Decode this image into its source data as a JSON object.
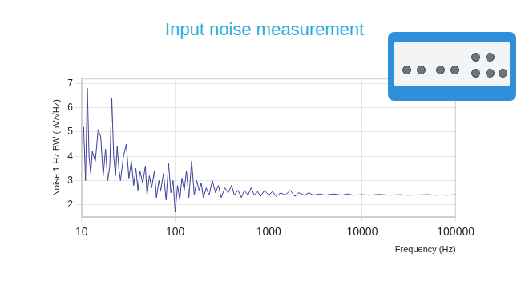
{
  "chart_data": {
    "type": "line",
    "title": "Input noise measurement",
    "x_label": "Frequency (Hz)",
    "y_label": "Noise 1 Hz BW (nV/√Hz)",
    "log": "x",
    "grid": true,
    "color": "#3f3f9c",
    "xlim": [
      10,
      100000
    ],
    "xticks": [
      10,
      100,
      1000,
      10000,
      100000
    ],
    "ylim": [
      1.5,
      7.2
    ],
    "yticks": [
      2,
      3,
      4,
      5,
      6,
      7
    ],
    "x": [
      10,
      10.5,
      11,
      11.5,
      12,
      12.5,
      13,
      14,
      15,
      16,
      17,
      18,
      19,
      20,
      21,
      22,
      23,
      24,
      25,
      26,
      28,
      30,
      32,
      34,
      36,
      38,
      40,
      42,
      45,
      48,
      50,
      53,
      56,
      60,
      63,
      67,
      70,
      75,
      80,
      85,
      90,
      95,
      100,
      106,
      112,
      118,
      125,
      132,
      140,
      150,
      160,
      170,
      180,
      190,
      200,
      215,
      230,
      250,
      270,
      290,
      310,
      340,
      370,
      400,
      430,
      470,
      510,
      550,
      600,
      650,
      700,
      760,
      820,
      900,
      1000,
      1100,
      1200,
      1350,
      1500,
      1700,
      1900,
      2100,
      2400,
      2700,
      3000,
      3500,
      4000,
      5000,
      6000,
      7000,
      8000,
      10000,
      12000,
      15000,
      20000,
      25000,
      30000,
      40000,
      50000,
      60000,
      70000,
      80000,
      100000
    ],
    "values": [
      4.5,
      5.2,
      3.0,
      6.8,
      4.0,
      3.3,
      4.2,
      3.8,
      5.1,
      4.8,
      3.2,
      4.3,
      3.0,
      3.6,
      6.4,
      4.0,
      3.2,
      4.4,
      3.5,
      3.0,
      4.0,
      4.5,
      3.1,
      3.8,
      2.8,
      3.5,
      2.6,
      3.4,
      2.9,
      3.6,
      2.4,
      3.2,
      2.7,
      3.4,
      2.3,
      3.0,
      2.6,
      3.3,
      2.2,
      3.7,
      2.5,
      3.0,
      1.7,
      2.8,
      2.2,
      3.1,
      2.6,
      3.4,
      2.3,
      3.8,
      2.4,
      3.0,
      2.6,
      2.9,
      2.3,
      2.7,
      2.4,
      3.0,
      2.5,
      2.8,
      2.3,
      2.7,
      2.5,
      2.8,
      2.4,
      2.6,
      2.3,
      2.6,
      2.4,
      2.7,
      2.4,
      2.55,
      2.35,
      2.6,
      2.4,
      2.55,
      2.35,
      2.5,
      2.4,
      2.6,
      2.35,
      2.5,
      2.4,
      2.5,
      2.4,
      2.45,
      2.4,
      2.45,
      2.4,
      2.45,
      2.4,
      2.42,
      2.4,
      2.43,
      2.4,
      2.42,
      2.4,
      2.41,
      2.42,
      2.4,
      2.41,
      2.4,
      2.42
    ]
  }
}
